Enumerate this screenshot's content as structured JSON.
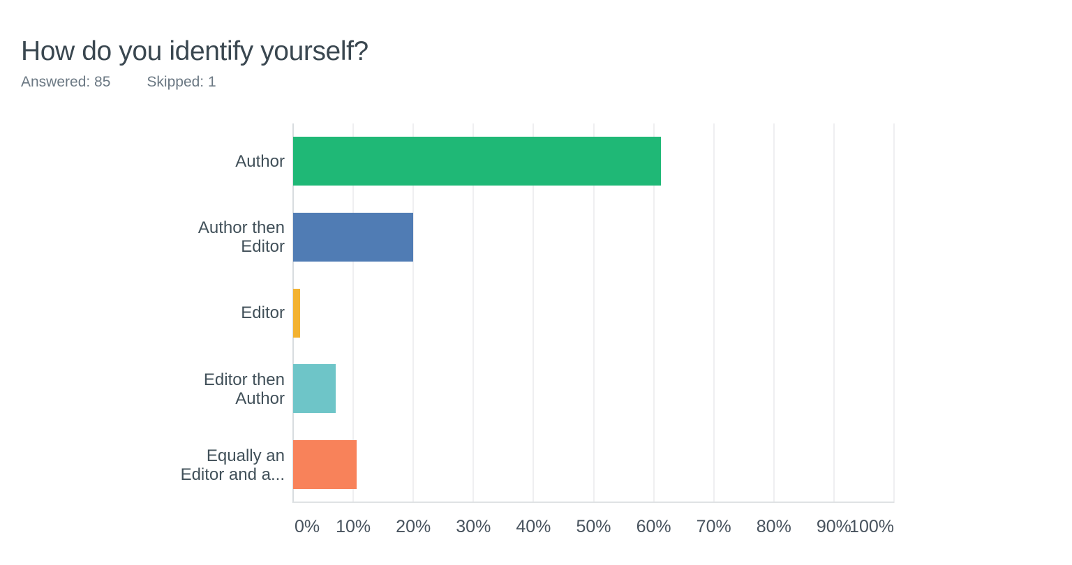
{
  "header": {
    "title": "How do you identify yourself?",
    "answered_label": "Answered: 85",
    "skipped_label": "Skipped: 1"
  },
  "chart_data": {
    "type": "bar",
    "orientation": "horizontal",
    "title": "How do you identify yourself?",
    "categories": [
      "Author",
      "Author then Editor",
      "Editor",
      "Editor then Author",
      "Equally an Editor and a..."
    ],
    "category_display_lines": [
      [
        "Author"
      ],
      [
        "Author then",
        "Editor"
      ],
      [
        "Editor"
      ],
      [
        "Editor then",
        "Author"
      ],
      [
        "Equally an",
        "Editor and a..."
      ]
    ],
    "values": [
      61.18,
      20.0,
      1.18,
      7.06,
      10.59
    ],
    "unit": "%",
    "bar_colors": [
      "#1FB876",
      "#507CB4",
      "#F3B231",
      "#6EC5C8",
      "#F8825A"
    ],
    "xlim": [
      0,
      100
    ],
    "x_ticks": [
      "0%",
      "10%",
      "20%",
      "30%",
      "40%",
      "50%",
      "60%",
      "70%",
      "80%",
      "90%",
      "100%"
    ],
    "grid": true,
    "legend": false
  },
  "colors": {
    "title_text": "#3A4750",
    "stats_text": "#6B7883",
    "category_label_text": "#415059",
    "axis_label_text": "#47525D",
    "gridline": "#EFEFF1",
    "axis_line": "#D8DCDF",
    "baseline": "#DFE2E4"
  }
}
